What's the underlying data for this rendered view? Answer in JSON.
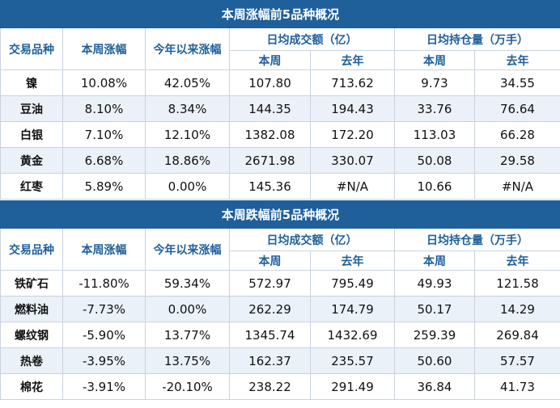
{
  "tables": [
    {
      "title": "本周涨幅前5品种概况",
      "headers": {
        "variety": "交易品种",
        "week_change": "本周涨幅",
        "ytd_change": "今年以来涨幅",
        "turnover_group": "日均成交额（亿）",
        "oi_group": "日均持仓量（万手）",
        "this_week": "本周",
        "last_year": "去年"
      },
      "rows": [
        {
          "name": "镍",
          "week": "10.08%",
          "ytd": "42.05%",
          "turnover_week": "107.80",
          "turnover_last_year": "713.62",
          "oi_week": "9.73",
          "oi_last_year": "34.55"
        },
        {
          "name": "豆油",
          "week": "8.10%",
          "ytd": "8.34%",
          "turnover_week": "144.35",
          "turnover_last_year": "194.43",
          "oi_week": "33.76",
          "oi_last_year": "76.64"
        },
        {
          "name": "白银",
          "week": "7.10%",
          "ytd": "12.10%",
          "turnover_week": "1382.08",
          "turnover_last_year": "172.20",
          "oi_week": "113.03",
          "oi_last_year": "66.28"
        },
        {
          "name": "黄金",
          "week": "6.68%",
          "ytd": "18.86%",
          "turnover_week": "2671.98",
          "turnover_last_year": "330.07",
          "oi_week": "50.08",
          "oi_last_year": "29.58"
        },
        {
          "name": "红枣",
          "week": "5.89%",
          "ytd": "0.00%",
          "turnover_week": "145.36",
          "turnover_last_year": "#N/A",
          "oi_week": "10.66",
          "oi_last_year": "#N/A"
        }
      ]
    },
    {
      "title": "本周跌幅前5品种概况",
      "headers": {
        "variety": "交易品种",
        "week_change": "本周涨幅",
        "ytd_change": "今年以来涨幅",
        "turnover_group": "日均成交额（亿）",
        "oi_group": "日均持仓量（万手）",
        "this_week": "本周",
        "last_year": "去年"
      },
      "rows": [
        {
          "name": "铁矿石",
          "week": "-11.80%",
          "ytd": "59.34%",
          "turnover_week": "572.97",
          "turnover_last_year": "795.49",
          "oi_week": "49.93",
          "oi_last_year": "121.58"
        },
        {
          "name": "燃料油",
          "week": "-7.73%",
          "ytd": "0.00%",
          "turnover_week": "262.29",
          "turnover_last_year": "174.79",
          "oi_week": "50.17",
          "oi_last_year": "14.29"
        },
        {
          "name": "螺纹钢",
          "week": "-5.90%",
          "ytd": "13.77%",
          "turnover_week": "1345.74",
          "turnover_last_year": "1432.69",
          "oi_week": "259.39",
          "oi_last_year": "269.84"
        },
        {
          "name": "热卷",
          "week": "-3.95%",
          "ytd": "13.75%",
          "turnover_week": "162.37",
          "turnover_last_year": "235.57",
          "oi_week": "50.60",
          "oi_last_year": "57.57"
        },
        {
          "name": "棉花",
          "week": "-3.91%",
          "ytd": "-20.10%",
          "turnover_week": "238.22",
          "turnover_last_year": "291.49",
          "oi_week": "36.84",
          "oi_last_year": "41.73"
        }
      ]
    }
  ],
  "colors": {
    "header_bg": "#1f5f9a",
    "header_text": "#ffffff",
    "subheader_text": "#1f5f9a",
    "alt_row_bg": "#eaf1f8"
  }
}
